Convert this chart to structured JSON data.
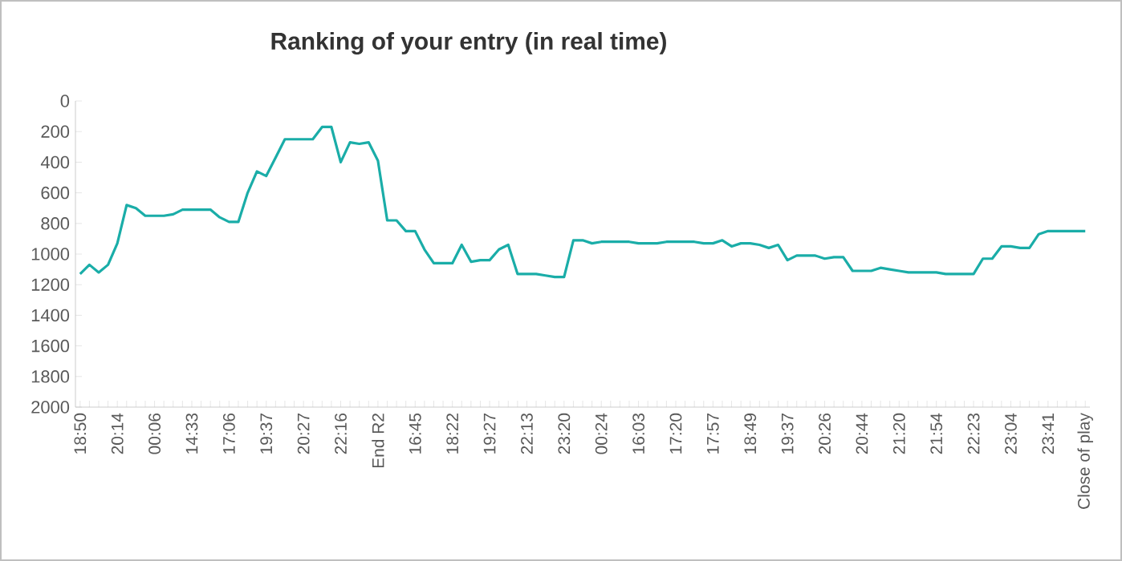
{
  "chart_data": {
    "type": "line",
    "title": "Ranking of your entry (in real time)",
    "categories": [
      "18:50",
      null,
      null,
      null,
      "20:14",
      null,
      null,
      null,
      "00:06",
      null,
      null,
      null,
      "14:33",
      null,
      null,
      null,
      "17:06",
      null,
      null,
      null,
      "19:37",
      null,
      null,
      null,
      "20:27",
      null,
      null,
      null,
      "22:16",
      null,
      null,
      null,
      "End R2",
      null,
      null,
      null,
      "16:45",
      null,
      null,
      null,
      "18:22",
      null,
      null,
      null,
      "19:27",
      null,
      null,
      null,
      "22:13",
      null,
      null,
      null,
      "23:20",
      null,
      null,
      null,
      "00:24",
      null,
      null,
      null,
      "16:03",
      null,
      null,
      null,
      "17:20",
      null,
      null,
      null,
      "17:57",
      null,
      null,
      null,
      "18:49",
      null,
      null,
      null,
      "19:37",
      null,
      null,
      null,
      "20:26",
      null,
      null,
      null,
      "20:44",
      null,
      null,
      null,
      "21:20",
      null,
      null,
      null,
      "21:54",
      null,
      null,
      null,
      "22:23",
      null,
      null,
      null,
      "23:04",
      null,
      null,
      null,
      "23:41",
      null,
      null,
      null,
      "Close of play"
    ],
    "series": [
      {
        "color": "#1aada8",
        "values": [
          1130,
          1070,
          1120,
          1070,
          930,
          680,
          700,
          750,
          750,
          750,
          740,
          710,
          710,
          710,
          710,
          760,
          790,
          790,
          600,
          460,
          490,
          370,
          250,
          250,
          250,
          250,
          170,
          170,
          400,
          270,
          280,
          270,
          390,
          780,
          780,
          850,
          850,
          970,
          1060,
          1060,
          1060,
          940,
          1050,
          1040,
          1040,
          970,
          940,
          1130,
          1130,
          1130,
          1140,
          1150,
          1150,
          910,
          910,
          930,
          920,
          920,
          920,
          920,
          930,
          930,
          930,
          920,
          920,
          920,
          920,
          930,
          930,
          910,
          950,
          930,
          930,
          940,
          960,
          940,
          1040,
          1010,
          1010,
          1010,
          1030,
          1020,
          1020,
          1110,
          1110,
          1110,
          1090,
          1100,
          1110,
          1120,
          1120,
          1120,
          1120,
          1130,
          1130,
          1130,
          1130,
          1030,
          1030,
          950,
          950,
          960,
          960,
          870,
          850,
          850,
          850,
          850,
          850
        ]
      }
    ],
    "ylim": [
      2000,
      0
    ],
    "yticks": [
      0,
      200,
      400,
      600,
      800,
      1000,
      1200,
      1400,
      1600,
      1800,
      2000
    ],
    "grid": false,
    "legend": false,
    "marker": "none",
    "line_style": "solid"
  }
}
